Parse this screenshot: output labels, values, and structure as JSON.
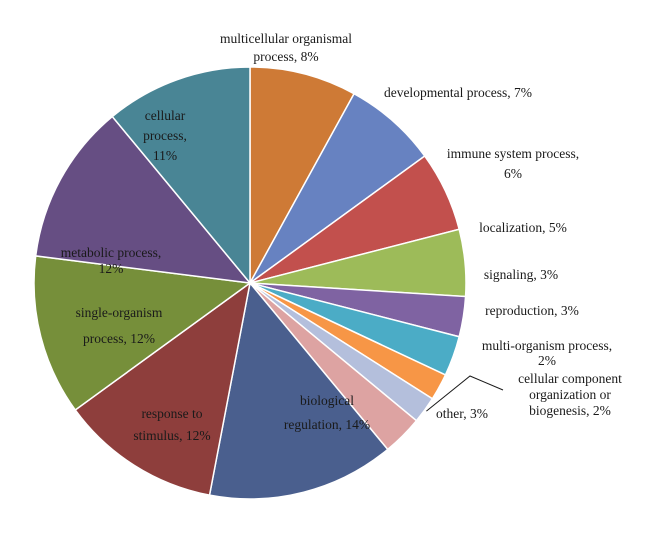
{
  "chart_data": {
    "type": "pie",
    "title": "",
    "unit": "%",
    "slices": [
      {
        "key": "multicellular",
        "label": "multicellular organismal process, 8%",
        "value": 8,
        "color": "#CE7A36"
      },
      {
        "key": "developmental",
        "label": "developmental process, 7%",
        "value": 7,
        "color": "#6782C1"
      },
      {
        "key": "immune",
        "label": "immune system process, 6%",
        "value": 6,
        "color": "#C2504D"
      },
      {
        "key": "localization",
        "label": "localization, 5%",
        "value": 5,
        "color": "#9DBB59"
      },
      {
        "key": "signaling",
        "label": "signaling, 3%",
        "value": 3,
        "color": "#7F63A2"
      },
      {
        "key": "reproduction",
        "label": "reproduction, 3%",
        "value": 3,
        "color": "#4BACC6"
      },
      {
        "key": "multiorganism",
        "label": "multi-organism process, 2%",
        "value": 2,
        "color": "#F79646"
      },
      {
        "key": "cellcomponent",
        "label": "cellular component organization or biogenesis, 2%",
        "value": 2,
        "color": "#B4BFDC"
      },
      {
        "key": "other",
        "label": "other, 3%",
        "value": 3,
        "color": "#DDA3A2"
      },
      {
        "key": "biological",
        "label": "biological regulation, 14%",
        "value": 14,
        "color": "#4A5F8E"
      },
      {
        "key": "response",
        "label": "response to stimulus, 12%",
        "value": 12,
        "color": "#8E3E3C"
      },
      {
        "key": "singleorg",
        "label": "single-organism process, 12%",
        "value": 12,
        "color": "#768F3A"
      },
      {
        "key": "metabolic",
        "label": "metabolic process, 12%",
        "value": 12,
        "color": "#664E83"
      },
      {
        "key": "cellular",
        "label": "cellular process, 11%",
        "value": 11,
        "color": "#498595"
      }
    ]
  },
  "labels": {
    "multicellular": [
      "multicellular organismal",
      "process, 8%"
    ],
    "developmental": [
      "developmental process, 7%"
    ],
    "immune": [
      "immune system process,",
      "6%"
    ],
    "localization": [
      "localization, 5%"
    ],
    "signaling": [
      "signaling, 3%"
    ],
    "reproduction": [
      "reproduction, 3%"
    ],
    "multiorganism": [
      "multi-organism process,",
      "2%"
    ],
    "cellcomponent": [
      "cellular component",
      "organization or",
      "biogenesis, 2%"
    ],
    "other": [
      "other, 3%"
    ],
    "biological": [
      "biological",
      "regulation, 14%"
    ],
    "response": [
      "response to",
      "stimulus, 12%"
    ],
    "singleorg": [
      "single-organism",
      "process, 12%"
    ],
    "metabolic": [
      "metabolic process,",
      "12%"
    ],
    "cellular": [
      "cellular",
      "process,",
      "11%"
    ]
  }
}
